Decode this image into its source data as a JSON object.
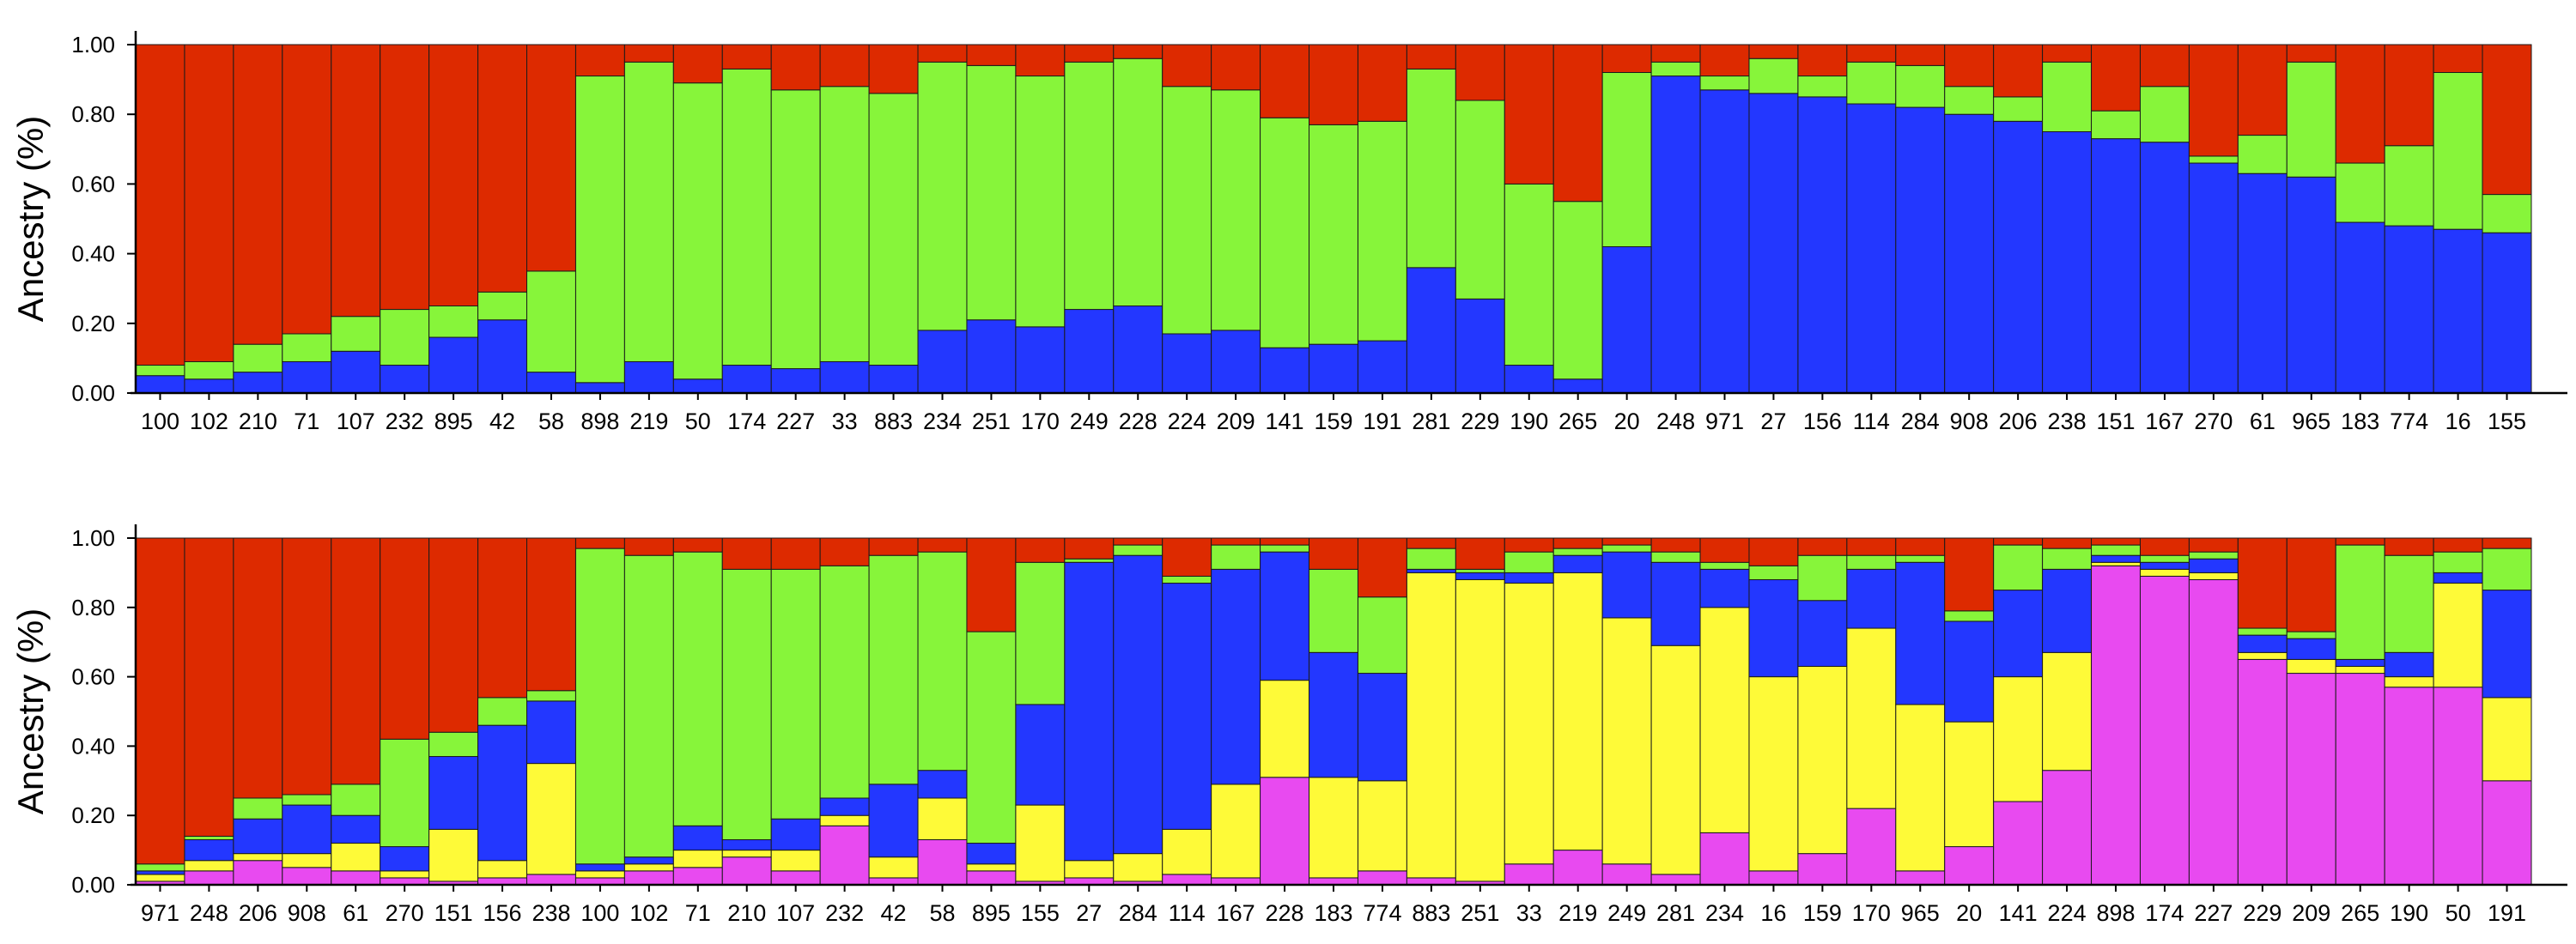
{
  "colors": {
    "red": "#dd2a00",
    "green": "#87f53a",
    "blue": "#2337ff",
    "yellow": "#fefa38",
    "magenta": "#e84af0"
  },
  "chart_data": [
    {
      "type": "bar",
      "stacked": true,
      "ylabel": "Ancestry (%)",
      "ylim": [
        0,
        1
      ],
      "yticks": [
        "0.00",
        "0.20",
        "0.40",
        "0.60",
        "0.80",
        "1.00"
      ],
      "categories": [
        "100",
        "102",
        "210",
        "71",
        "107",
        "232",
        "895",
        "42",
        "58",
        "898",
        "219",
        "50",
        "174",
        "227",
        "33",
        "883",
        "234",
        "251",
        "170",
        "249",
        "228",
        "224",
        "209",
        "141",
        "159",
        "191",
        "281",
        "229",
        "190",
        "265",
        "20",
        "248",
        "971",
        "27",
        "156",
        "114",
        "284",
        "908",
        "206",
        "238",
        "151",
        "167",
        "270",
        "61",
        "965",
        "183",
        "774",
        "16",
        "155"
      ],
      "series": [
        {
          "color": "#2337ff",
          "values": [
            0.05,
            0.04,
            0.06,
            0.09,
            0.12,
            0.08,
            0.16,
            0.21,
            0.06,
            0.03,
            0.09,
            0.04,
            0.08,
            0.07,
            0.09,
            0.08,
            0.18,
            0.21,
            0.19,
            0.24,
            0.25,
            0.17,
            0.18,
            0.13,
            0.14,
            0.15,
            0.36,
            0.27,
            0.08,
            0.04,
            0.42,
            0.91,
            0.87,
            0.86,
            0.85,
            0.83,
            0.82,
            0.8,
            0.78,
            0.75,
            0.73,
            0.72,
            0.66,
            0.63,
            0.62,
            0.49,
            0.48,
            0.47,
            0.46
          ]
        },
        {
          "color": "#87f53a",
          "values": [
            0.03,
            0.05,
            0.08,
            0.08,
            0.1,
            0.16,
            0.09,
            0.08,
            0.29,
            0.88,
            0.86,
            0.85,
            0.85,
            0.8,
            0.79,
            0.78,
            0.77,
            0.73,
            0.72,
            0.71,
            0.71,
            0.71,
            0.69,
            0.66,
            0.63,
            0.63,
            0.57,
            0.57,
            0.52,
            0.51,
            0.5,
            0.04,
            0.04,
            0.1,
            0.06,
            0.12,
            0.12,
            0.08,
            0.07,
            0.2,
            0.08,
            0.16,
            0.02,
            0.11,
            0.33,
            0.17,
            0.23,
            0.45,
            0.11
          ]
        },
        {
          "color": "#dd2a00",
          "values": [
            0.92,
            0.91,
            0.86,
            0.83,
            0.78,
            0.76,
            0.75,
            0.71,
            0.65,
            0.09,
            0.05,
            0.11,
            0.07,
            0.13,
            0.12,
            0.14,
            0.05,
            0.06,
            0.09,
            0.05,
            0.04,
            0.12,
            0.13,
            0.21,
            0.23,
            0.22,
            0.07,
            0.16,
            0.4,
            0.45,
            0.08,
            0.05,
            0.09,
            0.04,
            0.09,
            0.05,
            0.06,
            0.12,
            0.15,
            0.05,
            0.19,
            0.12,
            0.32,
            0.26,
            0.05,
            0.34,
            0.29,
            0.08,
            0.43
          ]
        }
      ]
    },
    {
      "type": "bar",
      "stacked": true,
      "ylabel": "Ancestry (%)",
      "ylim": [
        0,
        1
      ],
      "yticks": [
        "0.00",
        "0.20",
        "0.40",
        "0.60",
        "0.80",
        "1.00"
      ],
      "categories": [
        "971",
        "248",
        "206",
        "908",
        "61",
        "270",
        "151",
        "156",
        "238",
        "100",
        "102",
        "71",
        "210",
        "107",
        "232",
        "42",
        "58",
        "895",
        "155",
        "27",
        "284",
        "114",
        "167",
        "228",
        "183",
        "774",
        "883",
        "251",
        "33",
        "219",
        "249",
        "281",
        "234",
        "16",
        "159",
        "170",
        "965",
        "20",
        "141",
        "224",
        "898",
        "174",
        "227",
        "229",
        "209",
        "265",
        "190",
        "50",
        "191"
      ],
      "series": [
        {
          "color": "#e84af0",
          "values": [
            0.01,
            0.04,
            0.07,
            0.05,
            0.04,
            0.02,
            0.01,
            0.02,
            0.03,
            0.02,
            0.04,
            0.05,
            0.08,
            0.04,
            0.17,
            0.02,
            0.13,
            0.04,
            0.01,
            0.02,
            0.01,
            0.03,
            0.02,
            0.31,
            0.02,
            0.04,
            0.02,
            0.01,
            0.06,
            0.1,
            0.06,
            0.03,
            0.15,
            0.04,
            0.09,
            0.22,
            0.04,
            0.11,
            0.24,
            0.33,
            0.92,
            0.89,
            0.88,
            0.65,
            0.61,
            0.61,
            0.57,
            0.57,
            0.3
          ]
        },
        {
          "color": "#fefa38",
          "values": [
            0.02,
            0.03,
            0.02,
            0.04,
            0.08,
            0.02,
            0.15,
            0.05,
            0.32,
            0.02,
            0.02,
            0.05,
            0.02,
            0.06,
            0.03,
            0.06,
            0.12,
            0.02,
            0.22,
            0.05,
            0.08,
            0.13,
            0.27,
            0.28,
            0.29,
            0.26,
            0.88,
            0.87,
            0.81,
            0.8,
            0.71,
            0.66,
            0.65,
            0.56,
            0.54,
            0.52,
            0.48,
            0.36,
            0.36,
            0.34,
            0.01,
            0.02,
            0.02,
            0.02,
            0.04,
            0.02,
            0.03,
            0.3,
            0.24
          ]
        },
        {
          "color": "#2337ff",
          "values": [
            0.01,
            0.06,
            0.1,
            0.14,
            0.08,
            0.07,
            0.21,
            0.39,
            0.18,
            0.02,
            0.02,
            0.07,
            0.03,
            0.09,
            0.05,
            0.21,
            0.08,
            0.06,
            0.29,
            0.86,
            0.86,
            0.71,
            0.62,
            0.37,
            0.36,
            0.31,
            0.01,
            0.02,
            0.03,
            0.05,
            0.19,
            0.24,
            0.11,
            0.28,
            0.19,
            0.17,
            0.41,
            0.29,
            0.25,
            0.24,
            0.02,
            0.02,
            0.04,
            0.05,
            0.06,
            0.02,
            0.07,
            0.03,
            0.31
          ]
        },
        {
          "color": "#87f53a",
          "values": [
            0.02,
            0.01,
            0.06,
            0.03,
            0.09,
            0.31,
            0.07,
            0.08,
            0.03,
            0.91,
            0.87,
            0.79,
            0.78,
            0.72,
            0.67,
            0.66,
            0.63,
            0.61,
            0.41,
            0.01,
            0.03,
            0.02,
            0.07,
            0.02,
            0.24,
            0.22,
            0.06,
            0.01,
            0.06,
            0.02,
            0.02,
            0.03,
            0.02,
            0.04,
            0.13,
            0.04,
            0.02,
            0.03,
            0.13,
            0.06,
            0.03,
            0.02,
            0.02,
            0.02,
            0.02,
            0.33,
            0.28,
            0.06,
            0.12
          ]
        },
        {
          "color": "#dd2a00",
          "values": [
            0.94,
            0.86,
            0.75,
            0.74,
            0.71,
            0.58,
            0.56,
            0.46,
            0.44,
            0.03,
            0.05,
            0.04,
            0.09,
            0.09,
            0.08,
            0.05,
            0.04,
            0.27,
            0.07,
            0.06,
            0.02,
            0.11,
            0.02,
            0.02,
            0.09,
            0.17,
            0.03,
            0.09,
            0.04,
            0.03,
            0.02,
            0.04,
            0.07,
            0.08,
            0.05,
            0.05,
            0.05,
            0.21,
            0.02,
            0.03,
            0.02,
            0.05,
            0.04,
            0.26,
            0.27,
            0.02,
            0.05,
            0.04,
            0.03
          ]
        }
      ]
    }
  ]
}
